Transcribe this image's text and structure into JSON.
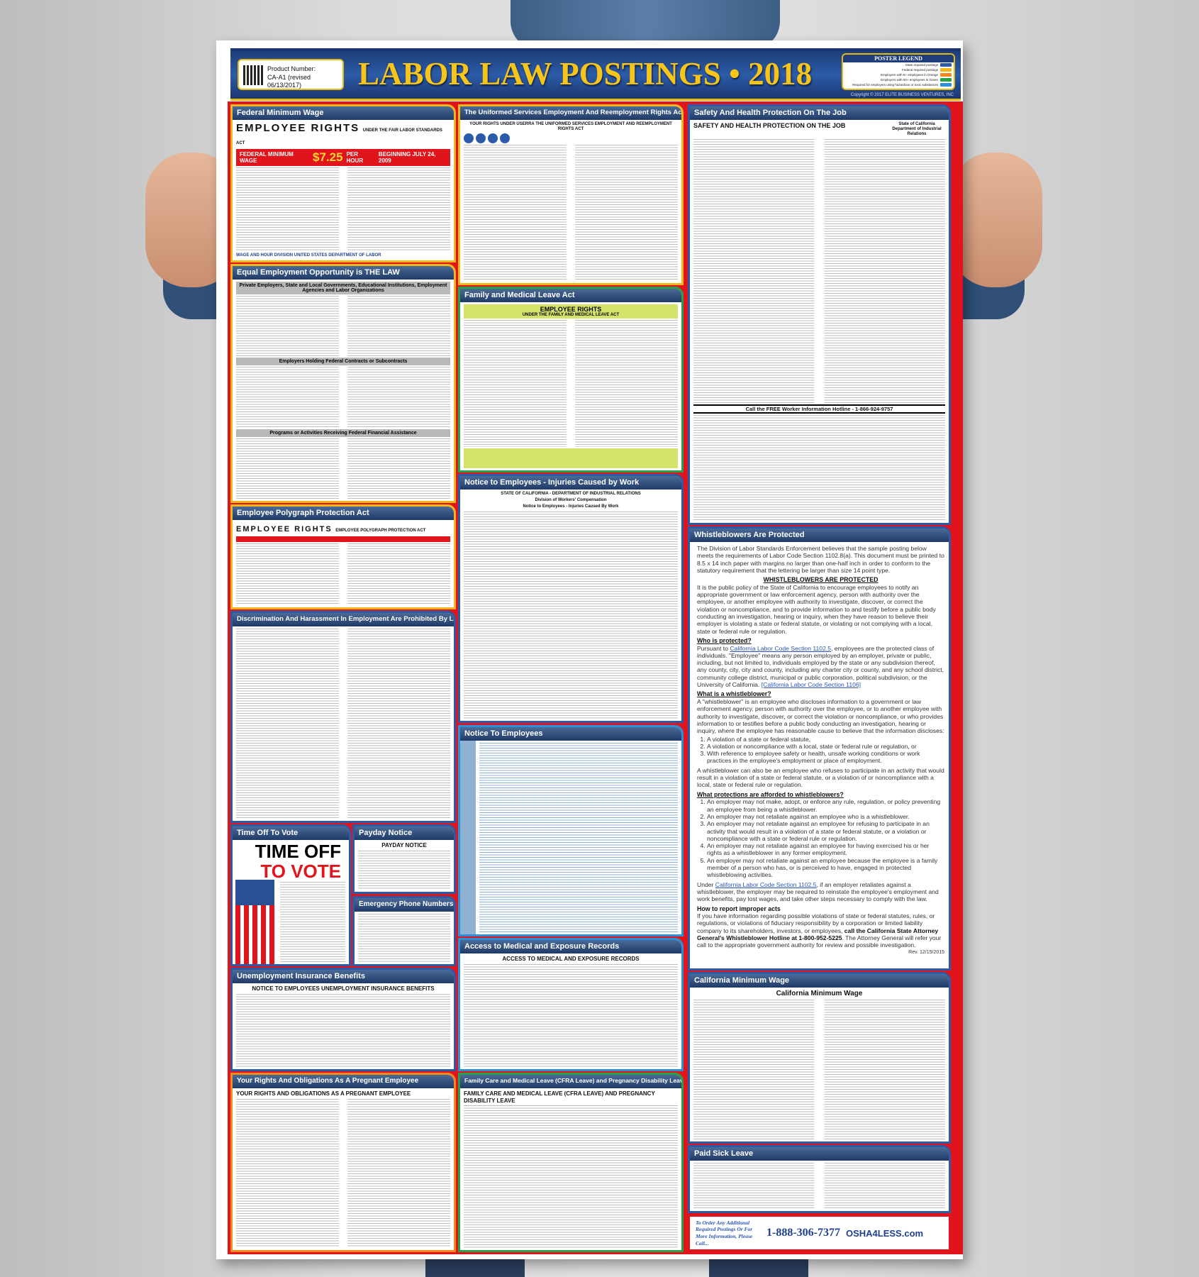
{
  "poster": {
    "title": "LABOR LAW POSTINGS • 2018",
    "product_label": "Product Number:",
    "product_number": "CA-A1 (revised 06/13/2017)",
    "copyright": "Copyright © 2017 ELITE BUSINESS VENTURES, INC",
    "legend": {
      "title": "POSTER LEGEND",
      "items": [
        {
          "label": "State required postings",
          "color": "#2b5aa8"
        },
        {
          "label": "Federal required postings",
          "color": "#f2b81b"
        },
        {
          "label": "Employers with 5+ employees in Orange",
          "color": "#f08a1d"
        },
        {
          "label": "Employers with 50+ employees in Green",
          "color": "#2aa148"
        },
        {
          "label": "Required for employers using hazardous or toxic substances",
          "color": "#2d8fd8"
        }
      ]
    }
  },
  "sections": {
    "fmw": {
      "title": "Federal Minimum Wage",
      "heading": "EMPLOYEE RIGHTS",
      "subheading": "UNDER THE FAIR LABOR STANDARDS ACT",
      "wage_label": "FEDERAL MINIMUM WAGE",
      "wage": "$7.25",
      "per": "PER HOUR",
      "since": "BEGINNING JULY 24, 2009",
      "agency": "WAGE AND HOUR DIVISION UNITED STATES DEPARTMENT OF LABOR"
    },
    "eeo": {
      "title": "Equal Employment Opportunity is THE LAW",
      "banner": "Private Employers, State and Local Governments, Educational Institutions, Employment Agencies and Labor Organizations",
      "mid": "Employers Holding Federal Contracts or Subcontracts",
      "low": "Programs or Activities Receiving Federal Financial Assistance"
    },
    "poly": {
      "title": "Employee Polygraph Protection Act",
      "heading": "EMPLOYEE RIGHTS",
      "subheading": "EMPLOYEE POLYGRAPH PROTECTION ACT"
    },
    "dh": {
      "title": "Discrimination And Harassment In Employment Are Prohibited By Law"
    },
    "vote": {
      "title": "Time Off To Vote",
      "line1": "TIME OFF",
      "line2": "TO VOTE"
    },
    "payday": {
      "title": "Payday Notice",
      "heading": "PAYDAY NOTICE"
    },
    "emerg": {
      "title": "Emergency Phone Numbers"
    },
    "ui": {
      "title": "Unemployment Insurance Benefits",
      "heading": "NOTICE TO EMPLOYEES UNEMPLOYMENT INSURANCE BENEFITS"
    },
    "preg": {
      "title": "Your Rights And Obligations As A Pregnant Employee",
      "heading": "YOUR RIGHTS AND OBLIGATIONS AS A PREGNANT EMPLOYEE"
    },
    "userra": {
      "title": "The Uniformed Services Employment And Reemployment Rights Act",
      "heading": "YOUR RIGHTS UNDER USERRA THE UNIFORMED SERVICES EMPLOYMENT AND REEMPLOYMENT RIGHTS ACT"
    },
    "fmla": {
      "title": "Family and Medical Leave Act",
      "heading": "EMPLOYEE RIGHTS",
      "subheading": "UNDER THE FAMILY AND MEDICAL LEAVE ACT"
    },
    "inj": {
      "title": "Notice to Employees - Injuries Caused by Work",
      "l1": "STATE OF CALIFORNIA - DEPARTMENT OF INDUSTRIAL RELATIONS",
      "l2": "Division of Workers' Compensation",
      "l3": "Notice to Employees - Injuries Caused By Work"
    },
    "nte": {
      "title": "Notice To Employees"
    },
    "amer": {
      "title": "Access to Medical and Exposure Records",
      "heading": "ACCESS TO MEDICAL AND EXPOSURE RECORDS"
    },
    "cfra": {
      "title": "Family Care and Medical Leave (CFRA Leave) and Pregnancy Disability Leave",
      "heading": "FAMILY CARE AND MEDICAL LEAVE (CFRA LEAVE) AND PREGNANCY DISABILITY LEAVE"
    },
    "safety": {
      "title": "Safety And Health Protection On The Job",
      "heading": "SAFETY AND HEALTH PROTECTION ON THE JOB",
      "state": "State of California Department of Industrial Relations",
      "hotline": "Call the FREE Worker Information Hotline - 1-866-924-9757"
    },
    "camw": {
      "title": "California Minimum Wage",
      "heading": "California Minimum Wage"
    },
    "psl": {
      "title": "Paid Sick Leave"
    },
    "wb": {
      "title": "Whistleblowers Are Protected",
      "intro": "The Division of Labor Standards Enforcement believes that the sample posting below meets the requirements of Labor Code Section 1102.8(a). This document must be printed to 8.5 x 14 inch paper with margins no larger than one-half inch in order to conform to the statutory requirement that the lettering be larger than size 14 point type.",
      "heading": "WHISTLEBLOWERS ARE PROTECTED",
      "policy": "It is the public policy of the State of California to encourage employees to notify an appropriate government or law enforcement agency, person with authority over the employee, or another employee with authority to investigate, discover, or correct the violation or noncompliance, and to provide information to and testify before a public body conducting an investigation, hearing or inquiry, when they have reason to believe their employer is violating a state or federal statute, or violating or not complying with a local, state or federal rule or regulation.",
      "who_h": "Who is protected?",
      "who_pre": "Pursuant to ",
      "who_link": "California Labor Code Section 1102.5",
      "who_text": ", employees are the protected class of individuals. \"Employee\" means any person employed by an employer, private or public, including, but not limited to, individuals employed by the state or any subdivision thereof, any county, city, city and county, including any charter city or county, and any school district, community college district, municipal or public corporation, political subdivision, or the University of California. ",
      "who_link2": "[California Labor Code Section 1106]",
      "what_h": "What is a whistleblower?",
      "what_text": "A \"whistleblower\" is an employee who discloses information to a government or law enforcement agency, person with authority over the employee, or to another employee with authority to investigate, discover, or correct the violation or noncompliance, or who provides information to or testifies before a public body conducting an investigation, hearing or inquiry, where the employee has reasonable cause to believe that the information discloses:",
      "what_list": [
        "A violation of a state or federal statute,",
        "A violation or noncompliance with a local, state or federal rule or regulation, or",
        "With reference to employee safety or health, unsafe working conditions or work practices in the employee's employment or place of employment."
      ],
      "what_also": "A whistleblower can also be an employee who refuses to participate in an activity that would result in a violation of a state or federal statute, or a violation of or noncompliance with a local, state or federal rule or regulation.",
      "prot_h": "What protections are afforded to whistleblowers?",
      "prot_list": [
        "An employer may not make, adopt, or enforce any rule, regulation, or policy preventing an employee from being a whistleblower.",
        "An employer may not retaliate against an employee who is a whistleblower.",
        "An employer may not retaliate against an employee for refusing to participate in an activity that would result in a violation of a state or federal statute, or a violation or noncompliance with a state or federal rule or regulation.",
        "An employer may not retaliate against an employee for having exercised his or her rights as a whistleblower in any former employment.",
        "An employer may not retaliate against an employee because the employee is a family member of a person who has, or is perceived to have, engaged in protected whistleblowing activities."
      ],
      "under_pre": "Under ",
      "under_link": "California Labor Code Section 1102.5",
      "under_text": ", if an employer retaliates against a whistleblower, the employer may be required to reinstate the employee's employment and work benefits, pay lost wages, and take other steps necessary to comply with the law.",
      "how_h": "How to report improper acts",
      "how_text": "If you have information regarding possible violations of state or federal statutes, rules, or regulations, or violations of fiduciary responsibility by a corporation or limited liability company to its shareholders, investors, or employees, ",
      "how_bold": "call the California State Attorney General's Whistleblower Hotline at 1-800-952-5225",
      "how_end": ". The Attorney General will refer your call to the appropriate government authority for review and possible investigation.",
      "rev": "Rev. 12/15/2015"
    }
  },
  "order": {
    "text": "To Order Any Additional Required Postings Or For More Information, Please Call...",
    "phone": "1-888-306-7377",
    "logo": "OSHA4LESS.com"
  }
}
